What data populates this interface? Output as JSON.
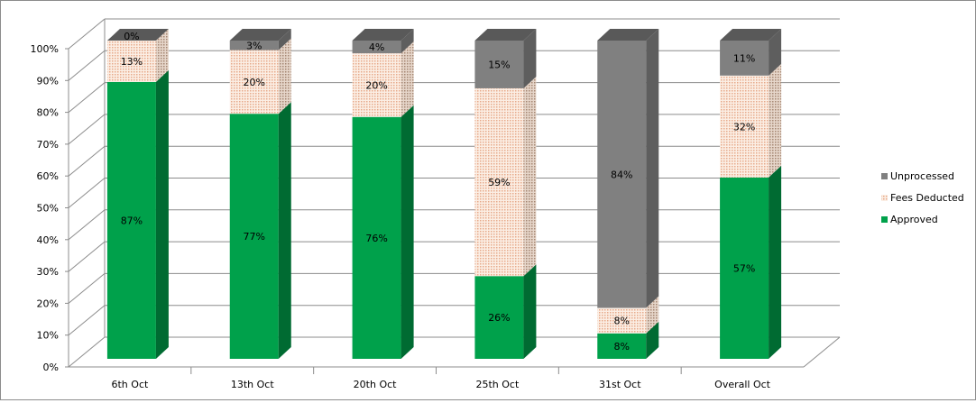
{
  "chart_data": {
    "type": "bar",
    "stacked": true,
    "percent_stacked": true,
    "three_d": true,
    "title": "",
    "xlabel": "",
    "ylabel": "",
    "ylim": [
      0,
      100
    ],
    "y_ticks": [
      "0%",
      "10%",
      "20%",
      "30%",
      "40%",
      "50%",
      "60%",
      "70%",
      "80%",
      "90%",
      "100%"
    ],
    "grid": true,
    "legend_position": "right",
    "categories": [
      "6th Oct",
      "13th Oct",
      "20th Oct",
      "25th Oct",
      "31st Oct",
      "Overall Oct"
    ],
    "series": [
      {
        "name": "Approved",
        "values": [
          87,
          77,
          76,
          26,
          8,
          57
        ],
        "labels": [
          "87%",
          "77%",
          "76%",
          "26%",
          "8%",
          "57%"
        ],
        "color": "#00a14b",
        "side_color": "#006b32",
        "top_color": "#2e8b57"
      },
      {
        "name": "Fees Deducted",
        "values": [
          13,
          20,
          20,
          59,
          8,
          32
        ],
        "labels": [
          "13%",
          "20%",
          "20%",
          "59%",
          "8%",
          "32%"
        ],
        "color": "#f6d7c3",
        "side_color": "#d9b9a4",
        "top_color": "#ead0bd"
      },
      {
        "name": "Unprocessed",
        "values": [
          0,
          3,
          4,
          15,
          84,
          11
        ],
        "labels": [
          "0%",
          "3%",
          "4%",
          "15%",
          "84%",
          "11%"
        ],
        "color": "#808080",
        "side_color": "#5e5e5e",
        "top_color": "#595959"
      }
    ],
    "legend_order": [
      "Unprocessed",
      "Fees Deducted",
      "Approved"
    ]
  }
}
